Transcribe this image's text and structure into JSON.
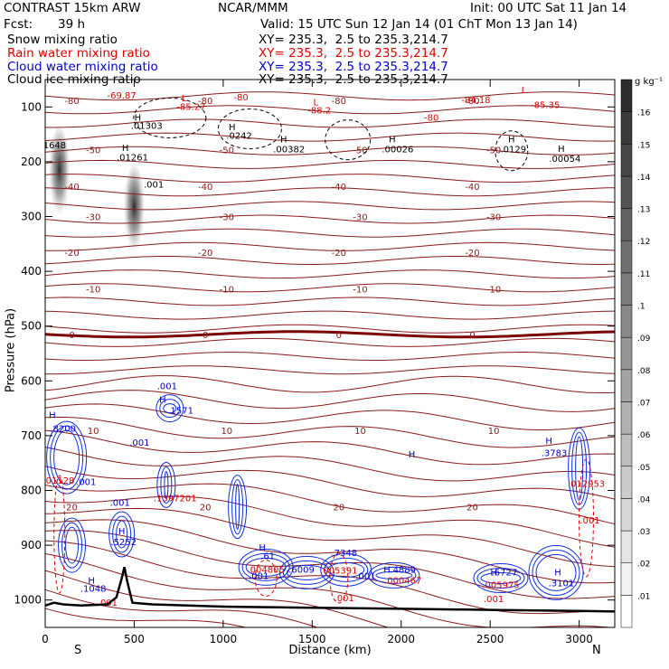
{
  "header": {
    "model": "CONTRAST 15km ARW",
    "org": "NCAR/MMM",
    "init": "Init: 00 UTC Sat 11 Jan 14",
    "fcst_label": "Fcst:",
    "fcst_value": "39 h",
    "valid": "Valid: 15 UTC Sun 12 Jan 14 (01 ChT Mon 13 Jan 14)",
    "fields": [
      {
        "name": "Snow mixing ratio",
        "xy": "XY= 235.3,  2.5 to 235.3,214.7",
        "color": "#000000"
      },
      {
        "name": "Rain water mixing ratio",
        "xy": "XY= 235.3,  2.5 to 235.3,214.7",
        "color": "#e00000"
      },
      {
        "name": "Cloud water mixing ratio",
        "xy": "XY= 235.3,  2.5 to 235.3,214.7",
        "color": "#0000cc"
      },
      {
        "name": "Cloud ice mixing ratio",
        "xy": "XY= 235.3,  2.5 to 235.3,214.7",
        "color": "#000000"
      }
    ]
  },
  "chart_data": {
    "type": "cross-section",
    "xlabel": "Distance (km)",
    "ylabel": "Pressure (hPa)",
    "xlim": [
      0,
      3200
    ],
    "ylim": [
      1050,
      50
    ],
    "x_ticks": [
      0,
      500,
      1000,
      1500,
      2000,
      2500,
      3000
    ],
    "y_ticks": [
      100,
      200,
      300,
      400,
      500,
      600,
      700,
      800,
      900,
      1000
    ],
    "end_labels": {
      "left": "S",
      "right": "N"
    },
    "colorbar": {
      "unit": "g kg⁻¹",
      "levels": [
        ".01",
        ".02",
        ".03",
        ".04",
        ".05",
        ".06",
        ".07",
        ".08",
        ".09",
        ".1",
        ".11",
        ".12",
        ".13",
        ".14",
        ".15",
        ".16"
      ]
    },
    "temperature_contours": [
      {
        "label": "-80",
        "p": 88
      },
      {
        "label": "-50",
        "p": 178
      },
      {
        "label": "-40",
        "p": 245
      },
      {
        "label": "-30",
        "p": 300
      },
      {
        "label": "-20",
        "p": 365
      },
      {
        "label": "-10",
        "p": 432
      },
      {
        "label": "0",
        "p": 515
      },
      {
        "label": "10",
        "p": 690
      },
      {
        "label": "20",
        "p": 830
      }
    ],
    "terrain": [
      [
        0,
        1010
      ],
      [
        50,
        1005
      ],
      [
        100,
        1008
      ],
      [
        200,
        1010
      ],
      [
        350,
        1008
      ],
      [
        400,
        995
      ],
      [
        430,
        960
      ],
      [
        445,
        940
      ],
      [
        460,
        965
      ],
      [
        490,
        1005
      ],
      [
        600,
        1008
      ],
      [
        800,
        1010
      ],
      [
        1000,
        1012
      ],
      [
        1500,
        1014
      ],
      [
        2000,
        1016
      ],
      [
        2500,
        1018
      ],
      [
        3000,
        1020
      ],
      [
        3200,
        1021
      ]
    ],
    "snow_plumes": [
      {
        "x": 80,
        "p_top": 150,
        "p_bottom": 295
      },
      {
        "x": 500,
        "p_top": 220,
        "p_bottom": 360
      }
    ],
    "extrema_labels": [
      {
        "x": 430,
        "p": 85,
        "text": "-69.87",
        "color": "#e00000"
      },
      {
        "x": 780,
        "p": 90,
        "text": "L",
        "color": "#e00000"
      },
      {
        "x": 1100,
        "p": 88,
        "text": "-80",
        "color": "#e00000"
      },
      {
        "x": 820,
        "p": 105,
        "text": "-85.27",
        "color": "#e00000"
      },
      {
        "x": 1520,
        "p": 97,
        "text": "L",
        "color": "#e00000"
      },
      {
        "x": 1540,
        "p": 112,
        "text": "-88.2",
        "color": "#e00000"
      },
      {
        "x": 2420,
        "p": 93,
        "text": "-84.18",
        "color": "#e00000"
      },
      {
        "x": 2690,
        "p": 75,
        "text": "L",
        "color": "#e00000"
      },
      {
        "x": 2810,
        "p": 102,
        "text": "-85.35",
        "color": "#e00000"
      },
      {
        "x": 2170,
        "p": 125,
        "text": "-80",
        "color": "#e00000"
      },
      {
        "x": 520,
        "p": 125,
        "text": "H",
        "color": "#000000"
      },
      {
        "x": 570,
        "p": 140,
        "text": ".01303",
        "color": "#000000"
      },
      {
        "x": 45,
        "p": 175,
        "text": ".1648",
        "color": "#000000"
      },
      {
        "x": 1050,
        "p": 142,
        "text": "H",
        "color": "#000000"
      },
      {
        "x": 1090,
        "p": 158,
        "text": ".0242",
        "color": "#000000"
      },
      {
        "x": 450,
        "p": 180,
        "text": "H",
        "color": "#000000"
      },
      {
        "x": 490,
        "p": 198,
        "text": ".01261",
        "color": "#000000"
      },
      {
        "x": 1340,
        "p": 165,
        "text": "H",
        "color": "#000000"
      },
      {
        "x": 1370,
        "p": 183,
        "text": ".00382",
        "color": "#000000"
      },
      {
        "x": 1950,
        "p": 165,
        "text": "H",
        "color": "#000000"
      },
      {
        "x": 1980,
        "p": 183,
        "text": ".00026",
        "color": "#000000"
      },
      {
        "x": 2620,
        "p": 165,
        "text": "H",
        "color": "#000000"
      },
      {
        "x": 2630,
        "p": 183,
        "text": ".0129",
        "color": "#000000"
      },
      {
        "x": 2900,
        "p": 182,
        "text": "H",
        "color": "#000000"
      },
      {
        "x": 2920,
        "p": 200,
        "text": ".00054",
        "color": "#000000"
      },
      {
        "x": 610,
        "p": 247,
        "text": ".001",
        "color": "#000000"
      },
      {
        "x": 685,
        "p": 615,
        "text": ".001",
        "color": "#0000cc"
      },
      {
        "x": 660,
        "p": 640,
        "text": "H",
        "color": "#0000cc"
      },
      {
        "x": 760,
        "p": 660,
        "text": ".1571",
        "color": "#0000cc"
      },
      {
        "x": 40,
        "p": 668,
        "text": "H",
        "color": "#0000cc"
      },
      {
        "x": 100,
        "p": 693,
        "text": ".8200",
        "color": "#0000cc"
      },
      {
        "x": 530,
        "p": 718,
        "text": ".001",
        "color": "#0000cc"
      },
      {
        "x": 2830,
        "p": 715,
        "text": "H",
        "color": "#0000cc"
      },
      {
        "x": 2860,
        "p": 737,
        "text": ".3783",
        "color": "#0000cc"
      },
      {
        "x": 230,
        "p": 790,
        "text": ".001",
        "color": "#0000cc"
      },
      {
        "x": 60,
        "p": 788,
        "text": ".001128",
        "color": "#e00000"
      },
      {
        "x": 730,
        "p": 820,
        "text": ".1397201",
        "color": "#e00000"
      },
      {
        "x": 2060,
        "p": 740,
        "text": "H",
        "color": "#0000cc"
      },
      {
        "x": 3040,
        "p": 793,
        "text": ".012953",
        "color": "#e00000"
      },
      {
        "x": 3060,
        "p": 860,
        "text": ".001",
        "color": "#e00000"
      },
      {
        "x": 420,
        "p": 828,
        "text": ".001",
        "color": "#0000cc"
      },
      {
        "x": 430,
        "p": 880,
        "text": "H",
        "color": "#0000cc"
      },
      {
        "x": 440,
        "p": 900,
        "text": ".5252",
        "color": "#0000cc"
      },
      {
        "x": 1220,
        "p": 910,
        "text": "H",
        "color": "#0000cc"
      },
      {
        "x": 1250,
        "p": 925,
        "text": ".61",
        "color": "#0000cc"
      },
      {
        "x": 1240,
        "p": 950,
        "text": ".004805",
        "color": "#e00000"
      },
      {
        "x": 1200,
        "p": 962,
        "text": ".001",
        "color": "#0000cc"
      },
      {
        "x": 1440,
        "p": 950,
        "text": ".6009",
        "color": "#0000cc"
      },
      {
        "x": 1680,
        "p": 920,
        "text": ".7348",
        "color": "#0000cc"
      },
      {
        "x": 1650,
        "p": 952,
        "text": ".005391",
        "color": "#e00000"
      },
      {
        "x": 1800,
        "p": 962,
        "text": ".001",
        "color": "#0000cc"
      },
      {
        "x": 1920,
        "p": 950,
        "text": "H",
        "color": "#0000cc"
      },
      {
        "x": 2010,
        "p": 950,
        "text": ".4889",
        "color": "#0000cc"
      },
      {
        "x": 2010,
        "p": 970,
        "text": ".000467",
        "color": "#e00000"
      },
      {
        "x": 2520,
        "p": 955,
        "text": "H",
        "color": "#0000cc"
      },
      {
        "x": 2580,
        "p": 955,
        "text": ".6727",
        "color": "#0000cc"
      },
      {
        "x": 2560,
        "p": 978,
        "text": ".005975",
        "color": "#e00000"
      },
      {
        "x": 2880,
        "p": 955,
        "text": "H",
        "color": "#0000cc"
      },
      {
        "x": 2900,
        "p": 975,
        "text": ".3101",
        "color": "#0000cc"
      },
      {
        "x": 260,
        "p": 970,
        "text": "H",
        "color": "#0000cc"
      },
      {
        "x": 270,
        "p": 985,
        "text": ".1048",
        "color": "#0000cc"
      },
      {
        "x": 1680,
        "p": 1002,
        "text": ".001",
        "color": "#e00000"
      },
      {
        "x": 2520,
        "p": 1004,
        "text": ".001",
        "color": "#e00000"
      },
      {
        "x": 350,
        "p": 1010,
        "text": ".001",
        "color": "#e00000"
      }
    ]
  }
}
